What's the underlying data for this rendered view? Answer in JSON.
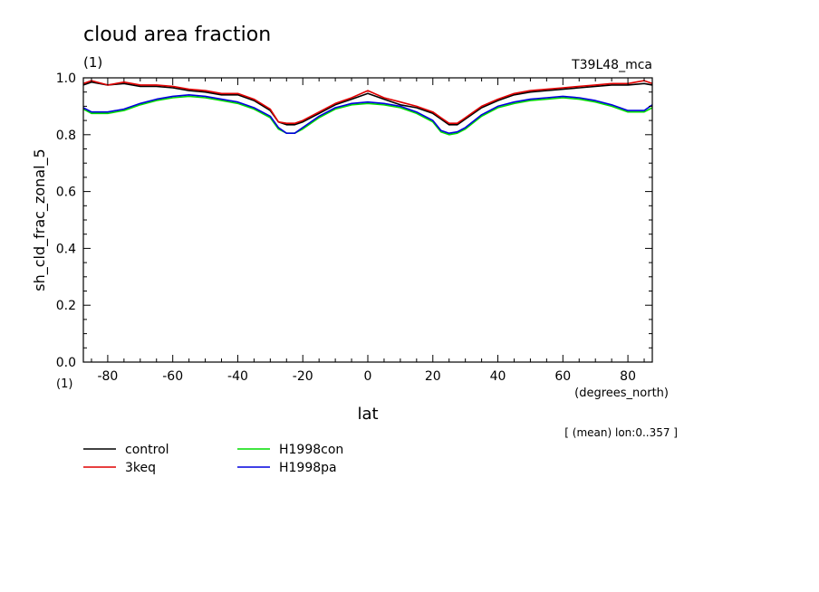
{
  "chart_data": {
    "type": "line",
    "title": "cloud area fraction",
    "title_units": "(1)",
    "experiment": "T39L48_mca",
    "xlabel": "lat",
    "x_units": "(degrees_north)",
    "ylabel": "sh_cld_frac_zonal_5",
    "y_units": "(1)",
    "xlim": [
      -87.5,
      87.5
    ],
    "ylim": [
      0.0,
      1.0
    ],
    "x_ticks": [
      -80,
      -60,
      -40,
      -20,
      0,
      20,
      40,
      60,
      80
    ],
    "x_tick_labels": [
      "-80",
      "-60",
      "-40",
      "-20",
      "0",
      "20",
      "40",
      "60",
      "80"
    ],
    "y_ticks": [
      0.0,
      0.2,
      0.4,
      0.6,
      0.8,
      1.0
    ],
    "y_tick_labels": [
      "0.0",
      "0.2",
      "0.4",
      "0.6",
      "0.8",
      "1.0"
    ],
    "annotation": "[ (mean) lon:0..357 ]",
    "grid": false,
    "x": [
      -87.5,
      -85,
      -80,
      -75,
      -70,
      -65,
      -60,
      -55,
      -50,
      -45,
      -40,
      -35,
      -30,
      -27.5,
      -25,
      -22.5,
      -20,
      -15,
      -10,
      -5,
      0,
      5,
      10,
      15,
      20,
      22.5,
      25,
      27.5,
      30,
      35,
      40,
      45,
      50,
      55,
      60,
      65,
      70,
      75,
      80,
      85,
      87.5
    ],
    "series": [
      {
        "name": "control",
        "color": "#000000",
        "values": [
          0.975,
          0.985,
          0.975,
          0.98,
          0.97,
          0.97,
          0.965,
          0.955,
          0.95,
          0.94,
          0.94,
          0.92,
          0.885,
          0.845,
          0.835,
          0.835,
          0.845,
          0.875,
          0.905,
          0.925,
          0.945,
          0.925,
          0.905,
          0.895,
          0.875,
          0.855,
          0.835,
          0.835,
          0.855,
          0.895,
          0.92,
          0.94,
          0.95,
          0.955,
          0.96,
          0.965,
          0.97,
          0.975,
          0.975,
          0.98,
          0.975
        ]
      },
      {
        "name": "3keq",
        "color": "#e00000",
        "values": [
          0.98,
          0.99,
          0.975,
          0.985,
          0.975,
          0.975,
          0.97,
          0.96,
          0.955,
          0.945,
          0.945,
          0.925,
          0.89,
          0.845,
          0.84,
          0.84,
          0.85,
          0.88,
          0.91,
          0.93,
          0.955,
          0.93,
          0.915,
          0.9,
          0.88,
          0.86,
          0.84,
          0.84,
          0.86,
          0.9,
          0.925,
          0.945,
          0.955,
          0.96,
          0.965,
          0.97,
          0.975,
          0.98,
          0.98,
          0.99,
          0.98
        ]
      },
      {
        "name": "H1998con",
        "color": "#00dd00",
        "values": [
          0.89,
          0.875,
          0.875,
          0.885,
          0.905,
          0.92,
          0.93,
          0.935,
          0.93,
          0.92,
          0.91,
          0.89,
          0.86,
          0.82,
          0.805,
          0.805,
          0.82,
          0.86,
          0.89,
          0.905,
          0.91,
          0.905,
          0.895,
          0.875,
          0.845,
          0.81,
          0.8,
          0.805,
          0.82,
          0.865,
          0.895,
          0.91,
          0.92,
          0.925,
          0.93,
          0.925,
          0.915,
          0.9,
          0.88,
          0.88,
          0.895
        ]
      },
      {
        "name": "H1998pa",
        "color": "#0000dd",
        "values": [
          0.895,
          0.88,
          0.88,
          0.89,
          0.91,
          0.925,
          0.935,
          0.94,
          0.935,
          0.925,
          0.915,
          0.895,
          0.865,
          0.825,
          0.805,
          0.805,
          0.825,
          0.865,
          0.895,
          0.91,
          0.915,
          0.91,
          0.9,
          0.88,
          0.85,
          0.815,
          0.805,
          0.81,
          0.825,
          0.87,
          0.9,
          0.915,
          0.925,
          0.93,
          0.935,
          0.93,
          0.92,
          0.905,
          0.885,
          0.885,
          0.905
        ]
      }
    ]
  }
}
